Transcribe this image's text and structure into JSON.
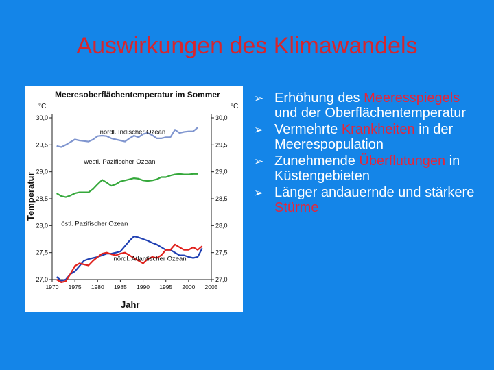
{
  "slide": {
    "title": "Auswirkungen des Klimawandels",
    "accent": "#d6262e",
    "background": "#1485e8"
  },
  "bullets": [
    {
      "icon": "arrow-bullet-icon",
      "parts": [
        {
          "text": "Erhöhung des ",
          "hl": false
        },
        {
          "text": "Meeresspiegels",
          "hl": true
        },
        {
          "text": " und der Oberflächentemperatur",
          "hl": false
        }
      ]
    },
    {
      "icon": "arrow-bullet-icon",
      "parts": [
        {
          "text": "Vermehrte ",
          "hl": false
        },
        {
          "text": "Krankheiten",
          "hl": true
        },
        {
          "text": " in der Meerespopulation",
          "hl": false
        }
      ]
    },
    {
      "icon": "arrow-bullet-icon",
      "parts": [
        {
          "text": "Zunehmende ",
          "hl": false
        },
        {
          "text": "Überflutungen",
          "hl": true
        },
        {
          "text": " in Küstengebieten",
          "hl": false
        }
      ]
    },
    {
      "icon": "arrow-bullet-icon",
      "parts": [
        {
          "text": "Länger andauernde und stärkere ",
          "hl": false
        },
        {
          "text": "Stürme",
          "hl": true
        }
      ]
    }
  ],
  "chart_data": {
    "type": "line",
    "title": "Meeresoberflächentemperatur im Sommer",
    "xlabel": "Jahr",
    "ylabel": "Temperatur",
    "unit_left": "°C",
    "unit_right": "°C",
    "xlim": [
      1970,
      2005
    ],
    "ylim": [
      27.0,
      30.0
    ],
    "xticks": [
      "1970",
      "1975",
      "1980",
      "1985",
      "1990",
      "1995",
      "2000",
      "2005"
    ],
    "yticks": [
      "27,0",
      "27,5",
      "28,0",
      "28,5",
      "29,0",
      "29,5",
      "30,0"
    ],
    "grid": false,
    "series": [
      {
        "name": "nördl. Indischer Ozean",
        "color": "#7f95cf",
        "x": [
          1971,
          1972,
          1973,
          1974,
          1975,
          1976,
          1977,
          1978,
          1979,
          1980,
          1981,
          1982,
          1983,
          1984,
          1985,
          1986,
          1987,
          1988,
          1989,
          1990,
          1991,
          1992,
          1993,
          1994,
          1995,
          1996,
          1997,
          1998,
          1999,
          2000,
          2001,
          2002
        ],
        "y": [
          29.48,
          29.46,
          29.5,
          29.55,
          29.6,
          29.58,
          29.57,
          29.56,
          29.6,
          29.66,
          29.67,
          29.66,
          29.62,
          29.6,
          29.58,
          29.56,
          29.62,
          29.67,
          29.64,
          29.7,
          29.72,
          29.68,
          29.62,
          29.62,
          29.64,
          29.64,
          29.78,
          29.72,
          29.74,
          29.75,
          29.75,
          29.82
        ]
      },
      {
        "name": "westl. Pazifischer Ozean",
        "color": "#35a83b",
        "x": [
          1971,
          1972,
          1973,
          1974,
          1975,
          1976,
          1977,
          1978,
          1979,
          1980,
          1981,
          1982,
          1983,
          1984,
          1985,
          1986,
          1987,
          1988,
          1989,
          1990,
          1991,
          1992,
          1993,
          1994,
          1995,
          1996,
          1997,
          1998,
          1999,
          2000,
          2001,
          2002
        ],
        "y": [
          28.6,
          28.55,
          28.53,
          28.56,
          28.6,
          28.62,
          28.62,
          28.62,
          28.68,
          28.77,
          28.85,
          28.8,
          28.74,
          28.77,
          28.82,
          28.84,
          28.86,
          28.88,
          28.87,
          28.84,
          28.83,
          28.84,
          28.86,
          28.9,
          28.9,
          28.93,
          28.95,
          28.96,
          28.95,
          28.95,
          28.96,
          28.96
        ]
      },
      {
        "name": "östl. Pazifischer Ozean",
        "color": "#1f3fb2",
        "x": [
          1971,
          1972,
          1973,
          1974,
          1975,
          1976,
          1977,
          1978,
          1979,
          1980,
          1981,
          1982,
          1983,
          1984,
          1985,
          1986,
          1987,
          1988,
          1989,
          1990,
          1991,
          1992,
          1993,
          1994,
          1995,
          1996,
          1997,
          1998,
          1999,
          2000,
          2001,
          2002,
          2003
        ],
        "y": [
          27.05,
          26.98,
          27.0,
          27.1,
          27.15,
          27.25,
          27.35,
          27.38,
          27.4,
          27.42,
          27.45,
          27.48,
          27.48,
          27.5,
          27.52,
          27.62,
          27.72,
          27.8,
          27.78,
          27.75,
          27.72,
          27.68,
          27.65,
          27.6,
          27.55,
          27.55,
          27.5,
          27.45,
          27.45,
          27.42,
          27.4,
          27.42,
          27.58
        ]
      },
      {
        "name": "nördl. Atlantischer Ozean",
        "color": "#e0211c",
        "x": [
          1971,
          1972,
          1973,
          1974,
          1975,
          1976,
          1977,
          1978,
          1979,
          1980,
          1981,
          1982,
          1983,
          1984,
          1985,
          1986,
          1987,
          1988,
          1989,
          1990,
          1991,
          1992,
          1993,
          1994,
          1995,
          1996,
          1997,
          1998,
          1999,
          2000,
          2001,
          2002,
          2003
        ],
        "y": [
          27.0,
          26.95,
          26.97,
          27.1,
          27.25,
          27.3,
          27.28,
          27.26,
          27.35,
          27.42,
          27.48,
          27.5,
          27.47,
          27.45,
          27.48,
          27.5,
          27.45,
          27.4,
          27.35,
          27.3,
          27.38,
          27.42,
          27.4,
          27.45,
          27.55,
          27.55,
          27.65,
          27.6,
          27.55,
          27.55,
          27.6,
          27.55,
          27.62
        ]
      }
    ]
  }
}
